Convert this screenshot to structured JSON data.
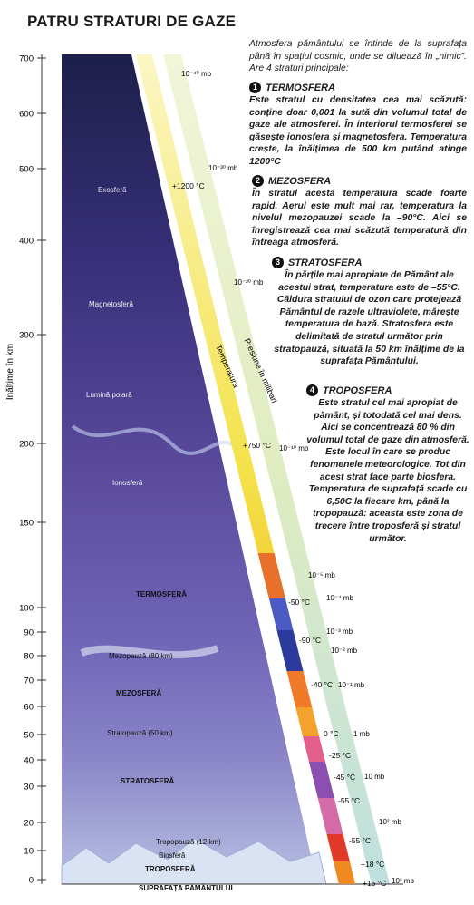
{
  "header": {
    "title": "PATRU STRATURI DE GAZE"
  },
  "axis": {
    "label": "Înălțime în km",
    "ticks": [
      "700",
      "600",
      "500",
      "400",
      "300",
      "200",
      "150",
      "100",
      "90",
      "80",
      "70",
      "60",
      "50",
      "40",
      "30",
      "20",
      "10",
      "0"
    ]
  },
  "diagram": {
    "layers": [
      "Exosferă",
      "Magnetosferă",
      "Lumină polară",
      "Ionosferă",
      "TERMOSFERĂ",
      "Mezopauză (80 km)",
      "MEZOSFERĂ",
      "Stratopauză (50 km)",
      "STRATOSFERĂ",
      "Tropopauză (12 km)",
      "Biosferă",
      "TROPOSFERĂ",
      "SUPRAFAȚA PĂMÂNTULUI"
    ],
    "band_labels": {
      "temperature": "Temperatura",
      "pressure": "Presiune în milibari"
    },
    "temperatures": [
      "+1200 °C",
      "+750 °C",
      "-50 °C",
      "-90 °C",
      "-40 °C",
      "0 °C",
      "-25 °C",
      "-45 °C",
      "-55 °C",
      "-55 °C",
      "+18 °C",
      "+15 °C"
    ],
    "pressures": [
      "10⁻⁴⁰ mb",
      "10⁻³⁰ mb",
      "10⁻²⁰ mb",
      "10⁻¹⁰ mb",
      "10⁻⁵ mb",
      "10⁻⁴ mb",
      "10⁻³ mb",
      "10⁻² mb",
      "10⁻¹ mb",
      "1 mb",
      "10 mb",
      "10² mb",
      "10³ mb"
    ]
  },
  "intro": "Atmosfera pământului se întinde de la suprafața până în spațiul cosmic, unde se diluează în „nimic”. Are 4 straturi principale:",
  "sections": [
    {
      "number": "1",
      "title": "TERMOSFERA",
      "body": "Este stratul cu densitatea cea mai scăzută: conține doar 0,001 la sută din volumul total de gaze ale atmosferei. În interiorul termosferei se găsește ionosfera și magnetosfera. Temperatura crește, la înălțimea de 500 km putând atinge 1200°C"
    },
    {
      "number": "2",
      "title": "MEZOSFERA",
      "body": "În stratul acesta temperatura scade foarte rapid. Aerul este mult mai rar, temperatura la nivelul mezopauzei scade la –90°C. Aici se înregistrează cea mai scăzută temperatură din întreaga atmosferă."
    },
    {
      "number": "3",
      "title": "STRATOSFERA",
      "body": "În părțile mai apropiate de Pământ ale acestui strat, temperatura este de –55°C. Căldura stratului de ozon care protejează Pământul de razele ultraviolete, mărește temperatura de bază. Stratosfera este delimitată de stratul următor prin stratopauză, situată la 50 km înălțime de la suprafața Pământului."
    },
    {
      "number": "4",
      "title": "TROPOSFERA",
      "body": "Este stratul cel mai apropiat de pământ, și totodată cel mai dens. Aici se concentrează 80 % din volumul total de gaze din atmosferă. Este locul în care se produc fenomenele meteorologice. Tot din acest strat face parte biosfera. Temperatura de suprafață scade cu 6,50C la fiecare km, până la tropopauză: aceasta este zona de trecere între troposferă și stratul următor."
    }
  ]
}
